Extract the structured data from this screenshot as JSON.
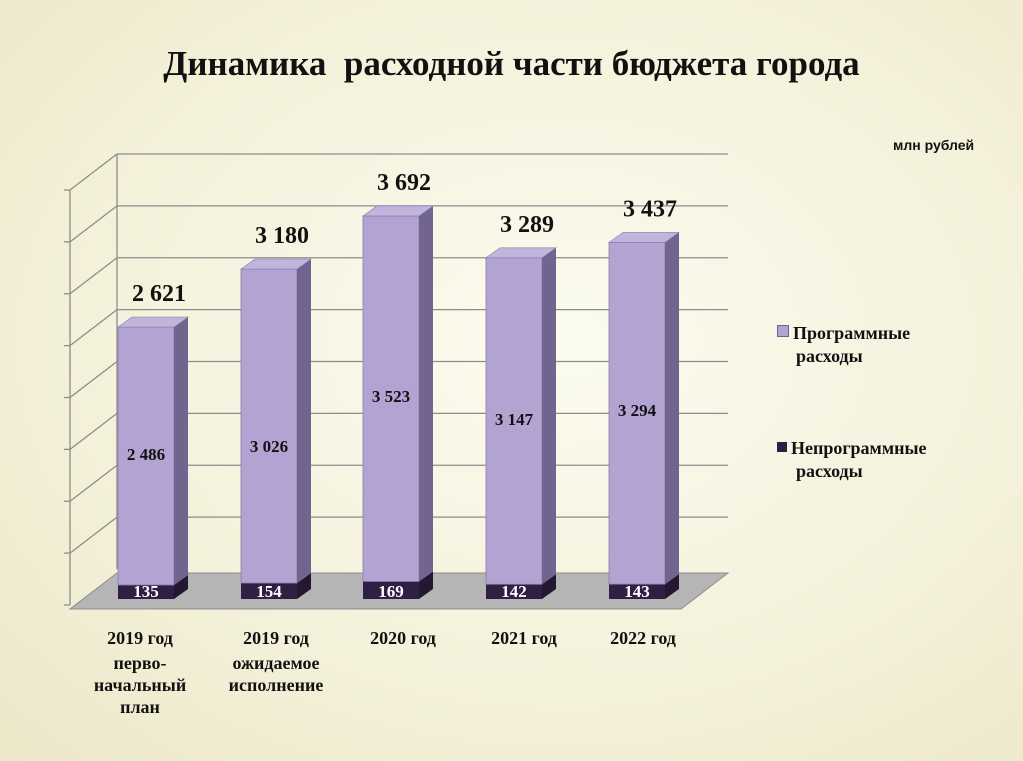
{
  "title": "Динамика  расходной части бюджета города",
  "unit": "млн рублей",
  "legend": [
    {
      "name": "Программные расходы",
      "line1": "Программные",
      "line2": "расходы",
      "color": "#b3a3d3"
    },
    {
      "name": "Непрограммные расходы",
      "line1": "Непрограммные",
      "line2": "расходы",
      "color": "#2e1f43"
    }
  ],
  "categories": [
    {
      "year": "2019 год",
      "sub": "перво-\nначальный\nплан"
    },
    {
      "year": "2019 год",
      "sub": "ожидаемое\nисполнение"
    },
    {
      "year": "2020 год",
      "sub": ""
    },
    {
      "year": "2021 год",
      "sub": ""
    },
    {
      "year": "2022 год",
      "sub": ""
    }
  ],
  "chart_data": {
    "type": "bar",
    "stacked": true,
    "categories": [
      "2019 год перво-начальный план",
      "2019 год ожидаемое исполнение",
      "2020 год",
      "2021 год",
      "2022 год"
    ],
    "series": [
      {
        "name": "Непрограммные расходы",
        "values": [
          135,
          154,
          169,
          142,
          143
        ],
        "labels": [
          "135",
          "154",
          "169",
          "142",
          "143"
        ]
      },
      {
        "name": "Программные расходы",
        "values": [
          2486,
          3026,
          3523,
          3147,
          3294
        ],
        "labels": [
          "2 486",
          "3 026",
          "3 523",
          "3 147",
          "3 294"
        ]
      }
    ],
    "totals": [
      2621,
      3180,
      3692,
      3289,
      3437
    ],
    "total_labels": [
      "2 621",
      "3 180",
      "3 692",
      "3 289",
      "3 437"
    ],
    "ylim": [
      0,
      4000
    ],
    "grid": true,
    "legend_position": "right"
  }
}
